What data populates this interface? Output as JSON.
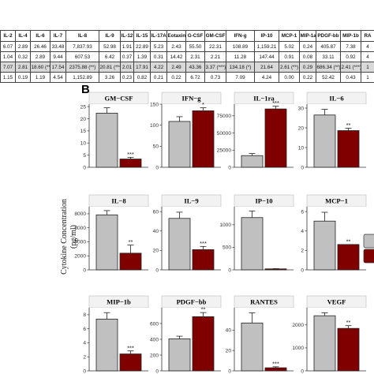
{
  "table": {
    "headers": [
      "IL-2",
      "IL-4",
      "IL-6",
      "IL-7",
      "IL-8",
      "IL-9",
      "IL-12",
      "IL-15",
      "IL-17A",
      "Eotaxin",
      "G-CSF",
      "GM-CSF",
      "IFN-g",
      "IP-10",
      "MCP-1",
      "MIP-1a",
      "PDGF-bb",
      "MIP-1b",
      "RA"
    ],
    "rows": [
      [
        "6.07",
        "2.89",
        "26.46",
        "33.48",
        "7,837.93",
        "52.98",
        "1.91",
        "22.89",
        "5.23",
        "2.43",
        "55.50",
        "22.31",
        "108.89",
        "1,159.21",
        "5.02",
        "0.24",
        "405.87",
        "7.38",
        "4"
      ],
      [
        "1.04",
        "0.32",
        "2.89",
        "9.44",
        "607.53",
        "6.42",
        "0.37",
        "1.39",
        "0.31",
        "14.42",
        "2.31",
        "2.21",
        "11.28",
        "147.44",
        "0.91",
        "0.08",
        "33.11",
        "0.92",
        "4"
      ],
      [
        "7.07",
        "2.81",
        "18.60 (**)",
        "17.54",
        "2375.88 (**)",
        "20.81 (***)",
        "2.01",
        "17.91",
        "4.22",
        "2.49",
        "43.36",
        "3.37 (***)",
        "134.18 (*)",
        "21.64",
        "2.61 (**)",
        "0.29",
        "686.34 (**)",
        "2.41 (***)",
        "1"
      ],
      [
        "1.15",
        "0.19",
        "1.19",
        "4.54",
        "1,152.89",
        "3.26",
        "0.23",
        "0.82",
        "0.21",
        "0.22",
        "6.72",
        "0.73",
        "7.09",
        "4.24",
        "0.00",
        "0.22",
        "52.42",
        "0.43",
        "1"
      ]
    ],
    "highlight_row_index": 2,
    "highlight_color": "#d9d9d9"
  },
  "figure": {
    "panel_label": "B",
    "y_axis_label": "Cytokine Concentration (pg/ml)",
    "colors": {
      "control": "#c0c0c0",
      "treated": "#800000",
      "panel_bg": "#ffffff",
      "axis": "#333333"
    }
  },
  "chart_data": {
    "type": "bar",
    "panels": [
      {
        "title": "GM−CSF",
        "values": [
          22.3,
          3.4
        ],
        "errors": [
          2.2,
          0.7
        ],
        "ylim": [
          0,
          26
        ],
        "ticks": [
          0,
          5,
          10,
          15,
          20,
          25
        ],
        "stars": [
          "",
          "***"
        ]
      },
      {
        "title": "IFN−g",
        "values": [
          108.9,
          134.2
        ],
        "errors": [
          11.3,
          7.1
        ],
        "ylim": [
          0,
          150
        ],
        "ticks": [
          0,
          50,
          100,
          150
        ],
        "stars": [
          "",
          "*"
        ]
      },
      {
        "title": "IL−1ra",
        "values": [
          17000,
          85000
        ],
        "errors": [
          3000,
          4000
        ],
        "ylim": [
          0,
          92000
        ],
        "ticks": [
          0,
          25000,
          50000,
          75000
        ],
        "stars": [
          "",
          "***"
        ]
      },
      {
        "title": "IL−6",
        "values": [
          26.5,
          18.6
        ],
        "errors": [
          2.9,
          1.2
        ],
        "ylim": [
          0,
          32
        ],
        "ticks": [
          0,
          10,
          20,
          30
        ],
        "stars": [
          "",
          "**"
        ]
      },
      {
        "title": "IL−8",
        "values": [
          7838,
          2376
        ],
        "errors": [
          608,
          1153
        ],
        "ylim": [
          0,
          9000
        ],
        "ticks": [
          0,
          2000,
          4000,
          6000,
          8000
        ],
        "stars": [
          "",
          "**"
        ]
      },
      {
        "title": "IL−9",
        "values": [
          53.0,
          20.8
        ],
        "errors": [
          6.4,
          3.3
        ],
        "ylim": [
          0,
          65
        ],
        "ticks": [
          0,
          20,
          40,
          60
        ],
        "stars": [
          "",
          "***"
        ]
      },
      {
        "title": "IP−10",
        "values": [
          1159.2,
          21.6
        ],
        "errors": [
          147.4,
          4.2
        ],
        "ylim": [
          0,
          1400
        ],
        "ticks": [
          0,
          500,
          1000
        ],
        "stars": [
          "",
          ""
        ]
      },
      {
        "title": "MCP−1",
        "values": [
          5.02,
          2.61
        ],
        "errors": [
          0.91,
          0.0
        ],
        "ylim": [
          0,
          6.5
        ],
        "ticks": [
          0,
          2,
          4,
          6
        ],
        "stars": [
          "",
          "**"
        ]
      },
      {
        "title": "MIP−1b",
        "values": [
          7.38,
          2.41
        ],
        "errors": [
          0.92,
          0.43
        ],
        "ylim": [
          0,
          9
        ],
        "ticks": [
          0,
          2,
          4,
          6,
          8
        ],
        "stars": [
          "",
          "***"
        ]
      },
      {
        "title": "PDGF−bb",
        "values": [
          405.9,
          686.3
        ],
        "errors": [
          33.1,
          52.4
        ],
        "ylim": [
          0,
          800
        ],
        "ticks": [
          0,
          200,
          400,
          600
        ],
        "stars": [
          "",
          "**"
        ]
      },
      {
        "title": "RANTES",
        "values": [
          47,
          3
        ],
        "errors": [
          10,
          1
        ],
        "ylim": [
          0,
          62
        ],
        "ticks": [
          0,
          20,
          40
        ],
        "stars": [
          "",
          "***"
        ]
      },
      {
        "title": "VEGF",
        "values": [
          2400,
          1850
        ],
        "errors": [
          130,
          120
        ],
        "ylim": [
          0,
          2750
        ],
        "ticks": [
          0,
          1000,
          2000
        ],
        "stars": [
          "",
          "**"
        ]
      }
    ]
  }
}
